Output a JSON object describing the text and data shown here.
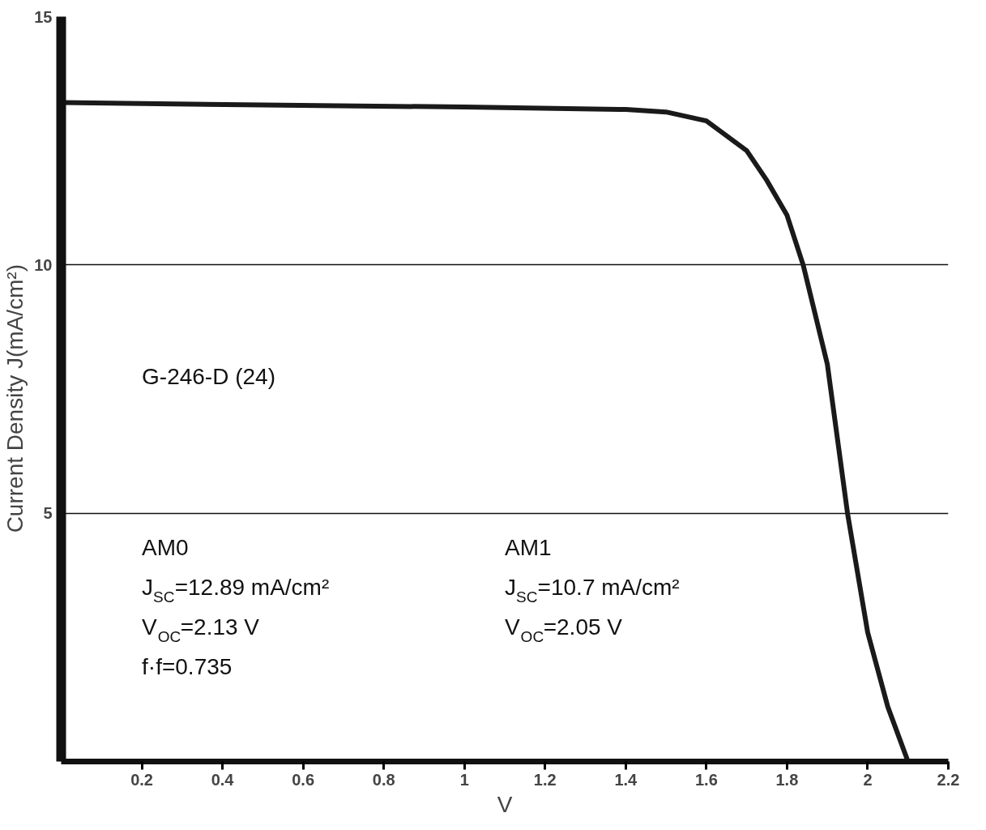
{
  "chart_data": {
    "type": "line",
    "xlabel": "V",
    "ylabel": "Current Density    J(mA/cm²)",
    "x": [
      0,
      0.5,
      1.0,
      1.4,
      1.5,
      1.6,
      1.7,
      1.75,
      1.8,
      1.84,
      1.9,
      1.95,
      2.0,
      2.05,
      2.1
    ],
    "series": [
      {
        "color": "#1a1a1a",
        "values": [
          13.27,
          13.22,
          13.18,
          13.13,
          13.08,
          12.9,
          12.3,
          11.7,
          11.0,
          10.0,
          8.0,
          5.0,
          2.6,
          1.1,
          0
        ]
      }
    ],
    "xlim": [
      0,
      2.2
    ],
    "ylim": [
      0,
      15
    ],
    "xticks": [
      0.2,
      0.4,
      0.6,
      0.8,
      1,
      1.2,
      1.4,
      1.6,
      1.8,
      2,
      2.2
    ],
    "yticks": [
      5,
      10,
      15
    ],
    "grid": "y",
    "marker": "none",
    "line_style": "solid",
    "annotations": [
      "G-246-D (24)",
      "AM0",
      "J$_{SC}$=12.89 mA/cm²",
      "V$_{OC}$=2.13 V",
      "f·f=0.735",
      "AM1",
      "J$_{SC}$=10.7 mA/cm²",
      "V$_{OC}$=2.05 V"
    ]
  }
}
